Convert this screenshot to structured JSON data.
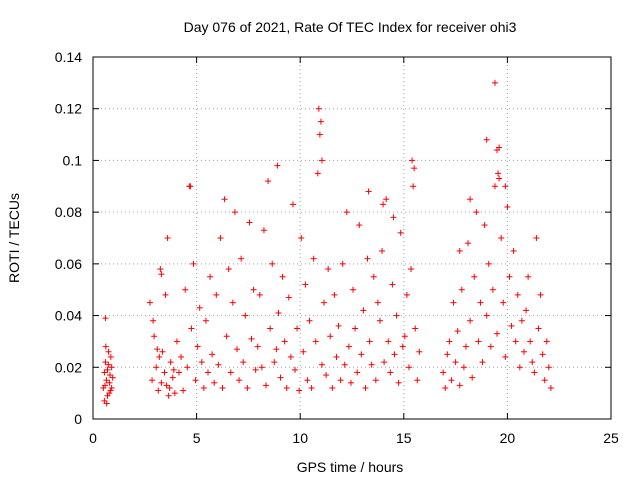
{
  "chart_data": {
    "type": "scatter",
    "title": "Day 076 of 2021, Rate Of TEC Index for receiver ohi3",
    "xlabel": "GPS time / hours",
    "ylabel": "ROTI / TECUs",
    "xlim": [
      0,
      25
    ],
    "ylim": [
      0,
      0.14
    ],
    "x_ticks": [
      "0",
      "5",
      "10",
      "15",
      "20",
      "25"
    ],
    "y_ticks": [
      "0",
      "0.02",
      "0.04",
      "0.06",
      "0.08",
      "0.1",
      "0.12",
      "0.14"
    ],
    "grid": true,
    "legend": "none",
    "marker": "plus",
    "color": "#ff0000",
    "series": [
      {
        "x": [
          0.5,
          0.55,
          0.6,
          0.65,
          0.7,
          0.75,
          0.8,
          0.85,
          0.9,
          0.95,
          0.55,
          0.62,
          0.7,
          0.78,
          0.86,
          0.58,
          0.66,
          0.74,
          0.82,
          0.9,
          2.75,
          2.85,
          2.95,
          3.05,
          3.15,
          3.25,
          3.35,
          3.45,
          3.55,
          3.65,
          3.75,
          3.85,
          3.95,
          2.9,
          3.1,
          3.3,
          3.5,
          3.7,
          3.9,
          3.2,
          4.05,
          4.15,
          4.25,
          4.35,
          4.45,
          4.55,
          4.65,
          4.75,
          4.85,
          4.95,
          5.05,
          5.15,
          5.25,
          5.35,
          5.45,
          5.55,
          5.65,
          5.75,
          5.85,
          5.95,
          6.05,
          6.15,
          6.25,
          6.35,
          6.45,
          6.55,
          6.65,
          6.75,
          6.85,
          6.95,
          7.05,
          7.15,
          7.25,
          7.35,
          7.45,
          7.55,
          7.65,
          7.75,
          7.85,
          7.95,
          8.05,
          8.15,
          8.25,
          8.35,
          8.45,
          8.55,
          8.65,
          8.75,
          8.85,
          8.95,
          9.05,
          9.15,
          9.25,
          9.35,
          9.45,
          9.55,
          9.65,
          9.75,
          9.85,
          9.95,
          10.05,
          10.15,
          10.25,
          10.35,
          10.45,
          10.55,
          10.65,
          10.75,
          10.85,
          10.95,
          11.05,
          11.15,
          11.25,
          11.35,
          11.45,
          11.55,
          11.65,
          11.75,
          11.85,
          11.95,
          12.05,
          12.15,
          12.25,
          12.35,
          12.45,
          12.55,
          12.65,
          12.75,
          12.85,
          12.95,
          13.05,
          13.15,
          13.25,
          13.35,
          13.45,
          13.55,
          13.65,
          13.75,
          13.85,
          13.95,
          14.05,
          14.15,
          14.25,
          14.35,
          14.45,
          14.55,
          14.65,
          14.75,
          14.85,
          14.95,
          15.05,
          15.15,
          15.25,
          15.35,
          15.45,
          15.55,
          15.65,
          15.75,
          16.9,
          17.0,
          17.1,
          17.2,
          17.3,
          17.4,
          17.5,
          17.6,
          17.7,
          17.8,
          17.9,
          18.0,
          18.1,
          18.2,
          18.3,
          18.4,
          18.5,
          18.6,
          18.7,
          18.8,
          18.9,
          19.0,
          19.1,
          19.2,
          19.3,
          19.4,
          19.5,
          19.6,
          19.7,
          19.8,
          19.9,
          20.0,
          20.1,
          20.2,
          20.3,
          20.4,
          20.5,
          20.6,
          20.7,
          20.8,
          20.9,
          21.0,
          21.1,
          21.2,
          21.3,
          21.4,
          21.5,
          21.6,
          21.7,
          21.8,
          21.9,
          22.0,
          22.1,
          0.6,
          4.7,
          8.9,
          10.9,
          11.0,
          11.05,
          13.3,
          15.4,
          15.5,
          19.0,
          19.4,
          19.5,
          19.55,
          19.6,
          19.9,
          18.2,
          17.7,
          3.6,
          3.3,
          14.0,
          14.5
        ],
        "y": [
          0.012,
          0.018,
          0.022,
          0.015,
          0.009,
          0.026,
          0.014,
          0.011,
          0.02,
          0.016,
          0.007,
          0.028,
          0.019,
          0.01,
          0.024,
          0.013,
          0.006,
          0.021,
          0.017,
          0.012,
          0.045,
          0.015,
          0.032,
          0.02,
          0.011,
          0.058,
          0.026,
          0.018,
          0.013,
          0.009,
          0.022,
          0.016,
          0.01,
          0.038,
          0.027,
          0.014,
          0.048,
          0.012,
          0.019,
          0.024,
          0.03,
          0.018,
          0.024,
          0.011,
          0.05,
          0.02,
          0.09,
          0.035,
          0.06,
          0.015,
          0.028,
          0.043,
          0.022,
          0.012,
          0.038,
          0.018,
          0.055,
          0.025,
          0.014,
          0.048,
          0.021,
          0.07,
          0.012,
          0.085,
          0.032,
          0.058,
          0.018,
          0.045,
          0.08,
          0.027,
          0.015,
          0.062,
          0.022,
          0.04,
          0.012,
          0.076,
          0.031,
          0.05,
          0.019,
          0.028,
          0.048,
          0.02,
          0.073,
          0.013,
          0.092,
          0.035,
          0.06,
          0.022,
          0.027,
          0.041,
          0.016,
          0.055,
          0.03,
          0.012,
          0.047,
          0.024,
          0.083,
          0.019,
          0.035,
          0.011,
          0.07,
          0.026,
          0.052,
          0.015,
          0.038,
          0.012,
          0.062,
          0.03,
          0.095,
          0.11,
          0.021,
          0.045,
          0.017,
          0.058,
          0.032,
          0.012,
          0.048,
          0.024,
          0.036,
          0.015,
          0.06,
          0.021,
          0.08,
          0.028,
          0.014,
          0.05,
          0.035,
          0.018,
          0.075,
          0.025,
          0.042,
          0.012,
          0.062,
          0.03,
          0.021,
          0.055,
          0.015,
          0.045,
          0.038,
          0.065,
          0.022,
          0.085,
          0.03,
          0.018,
          0.052,
          0.025,
          0.04,
          0.014,
          0.072,
          0.028,
          0.032,
          0.048,
          0.02,
          0.058,
          0.09,
          0.035,
          0.015,
          0.026,
          0.018,
          0.012,
          0.025,
          0.03,
          0.015,
          0.045,
          0.022,
          0.034,
          0.013,
          0.05,
          0.02,
          0.028,
          0.068,
          0.038,
          0.016,
          0.055,
          0.08,
          0.03,
          0.045,
          0.022,
          0.075,
          0.04,
          0.06,
          0.028,
          0.05,
          0.09,
          0.033,
          0.105,
          0.07,
          0.045,
          0.024,
          0.082,
          0.055,
          0.036,
          0.065,
          0.03,
          0.048,
          0.02,
          0.038,
          0.026,
          0.042,
          0.055,
          0.03,
          0.022,
          0.018,
          0.07,
          0.035,
          0.048,
          0.025,
          0.015,
          0.03,
          0.02,
          0.012,
          0.039,
          0.09,
          0.098,
          0.12,
          0.115,
          0.1,
          0.088,
          0.1,
          0.097,
          0.108,
          0.13,
          0.104,
          0.095,
          0.093,
          0.09,
          0.085,
          0.065,
          0.07,
          0.056,
          0.083,
          0.078
        ]
      }
    ]
  }
}
